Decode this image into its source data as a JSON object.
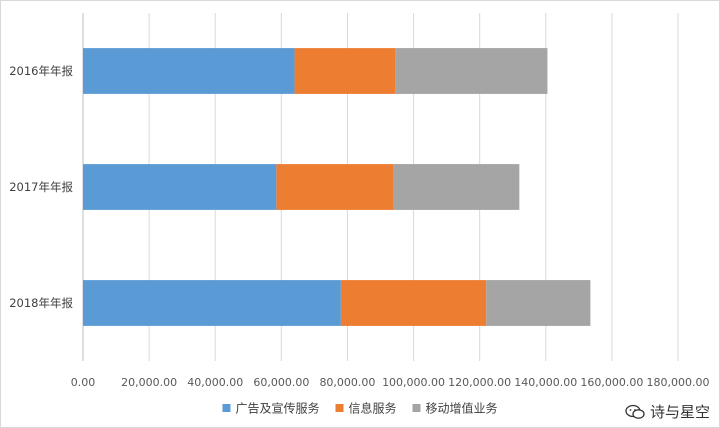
{
  "chart_data": {
    "type": "bar",
    "orientation": "horizontal",
    "stacked": true,
    "categories": [
      "2016年年报",
      "2017年年报",
      "2018年年报"
    ],
    "series": [
      {
        "name": "广告及宣传服务",
        "color": "#5b9bd5",
        "values": [
          64000,
          58500,
          78000
        ]
      },
      {
        "name": "信息服务",
        "color": "#ed7d31",
        "values": [
          30500,
          35500,
          44000
        ]
      },
      {
        "name": "移动增值业务",
        "color": "#a5a5a5",
        "values": [
          46000,
          38000,
          31500
        ]
      }
    ],
    "xlim": [
      0,
      180000
    ],
    "xticks": [
      0,
      20000,
      40000,
      60000,
      80000,
      100000,
      120000,
      140000,
      160000,
      180000
    ],
    "xtick_labels": [
      "0.00",
      "20,000.00",
      "40,000.00",
      "60,000.00",
      "80,000.00",
      "100,000.00",
      "120,000.00",
      "140,000.00",
      "160,000.00",
      "180,000.00"
    ],
    "grid": true,
    "legend": "bottom"
  },
  "watermark": {
    "text": "诗与星空",
    "icon": "wechat-icon"
  }
}
